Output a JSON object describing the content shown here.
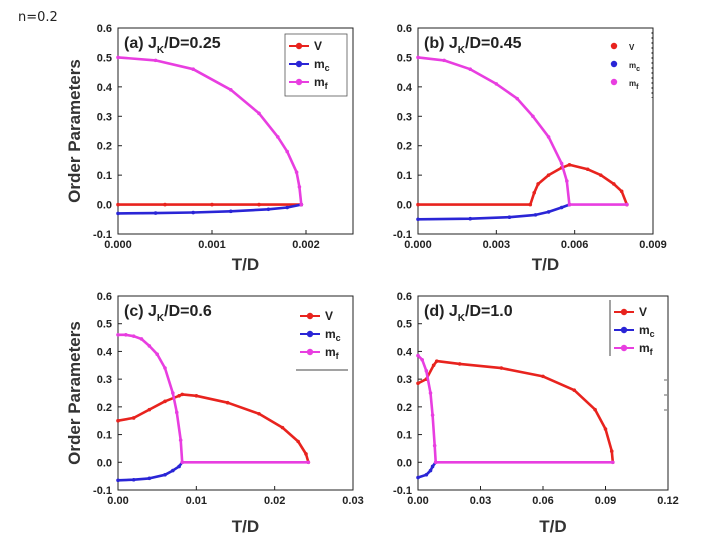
{
  "page_label": "n=0.2",
  "colors": {
    "V": "#e8231e",
    "mc": "#2a25d6",
    "mf": "#e83ee0",
    "axis": "#222222"
  },
  "chart_data": [
    {
      "id": "a",
      "type": "line",
      "title_pre": "(a) J",
      "title_sub": "K",
      "title_post": "/D=0.25",
      "xlabel": "T/D",
      "ylabel": "Order Parameters",
      "xlim": [
        0,
        0.0025
      ],
      "ylim": [
        -0.1,
        0.6
      ],
      "xticks": [
        "0.000",
        "0.001",
        "0.002"
      ],
      "xtick_values": [
        0,
        0.001,
        0.002
      ],
      "yticks": [
        "-0.1",
        "0.0",
        "0.1",
        "0.2",
        "0.3",
        "0.4",
        "0.5",
        "0.6"
      ],
      "ytick_values": [
        -0.1,
        0,
        0.1,
        0.2,
        0.3,
        0.4,
        0.5,
        0.6
      ],
      "legend": [
        "V",
        "m",
        "m"
      ],
      "legend_sub": [
        "",
        "c",
        "f"
      ],
      "series": [
        {
          "name": "V",
          "x": [
            0,
            0.0005,
            0.001,
            0.0015,
            0.00195
          ],
          "y": [
            0,
            0,
            0,
            0,
            0
          ]
        },
        {
          "name": "mc",
          "x": [
            0,
            0.0004,
            0.0008,
            0.0012,
            0.0016,
            0.0018,
            0.00195
          ],
          "y": [
            -0.03,
            -0.029,
            -0.027,
            -0.023,
            -0.016,
            -0.01,
            0
          ]
        },
        {
          "name": "mf",
          "x": [
            0,
            0.0004,
            0.0008,
            0.0012,
            0.0015,
            0.0017,
            0.0018,
            0.0019,
            0.00193,
            0.00195
          ],
          "y": [
            0.5,
            0.49,
            0.46,
            0.39,
            0.31,
            0.23,
            0.18,
            0.11,
            0.06,
            0
          ]
        }
      ]
    },
    {
      "id": "b",
      "type": "line",
      "title_pre": "(b) J",
      "title_sub": "K",
      "title_post": "/D=0.45",
      "xlabel": "T/D",
      "ylabel": "Order Parameters",
      "xlim": [
        0,
        0.009
      ],
      "ylim": [
        -0.1,
        0.6
      ],
      "xticks": [
        "0.000",
        "0.003",
        "0.006",
        "0.009"
      ],
      "xtick_values": [
        0,
        0.003,
        0.006,
        0.009
      ],
      "yticks": [
        "-0.1",
        "0.0",
        "0.1",
        "0.2",
        "0.3",
        "0.4",
        "0.5",
        "0.6"
      ],
      "ytick_values": [
        -0.1,
        0,
        0.1,
        0.2,
        0.3,
        0.4,
        0.5,
        0.6
      ],
      "legend": [
        "V",
        "m",
        "m"
      ],
      "legend_sub": [
        "",
        "c",
        "f"
      ],
      "series": [
        {
          "name": "V",
          "x": [
            0,
            0.0043,
            0.00445,
            0.0046,
            0.005,
            0.0055,
            0.0058,
            0.0065,
            0.007,
            0.0075,
            0.0078,
            0.008
          ],
          "y": [
            0,
            0,
            0.04,
            0.07,
            0.1,
            0.125,
            0.135,
            0.12,
            0.1,
            0.07,
            0.045,
            0
          ]
        },
        {
          "name": "mc",
          "x": [
            0,
            0.002,
            0.0035,
            0.0045,
            0.005,
            0.0055,
            0.0058
          ],
          "y": [
            -0.05,
            -0.048,
            -0.043,
            -0.035,
            -0.025,
            -0.01,
            0
          ]
        },
        {
          "name": "mf",
          "x": [
            0,
            0.001,
            0.002,
            0.003,
            0.0038,
            0.0044,
            0.005,
            0.0055,
            0.0057,
            0.0058,
            0.008
          ],
          "y": [
            0.5,
            0.49,
            0.46,
            0.41,
            0.36,
            0.3,
            0.23,
            0.14,
            0.08,
            0,
            0
          ]
        }
      ]
    },
    {
      "id": "c",
      "type": "line",
      "title_pre": "(c) J",
      "title_sub": "K",
      "title_post": "/D=0.6",
      "xlabel": "T/D",
      "ylabel": "Order Parameters",
      "xlim": [
        0,
        0.03
      ],
      "ylim": [
        -0.1,
        0.6
      ],
      "xticks": [
        "0.00",
        "0.01",
        "0.02",
        "0.03"
      ],
      "xtick_values": [
        0,
        0.01,
        0.02,
        0.03
      ],
      "yticks": [
        "-0.1",
        "0.0",
        "0.1",
        "0.2",
        "0.3",
        "0.4",
        "0.5",
        "0.6"
      ],
      "ytick_values": [
        -0.1,
        0,
        0.1,
        0.2,
        0.3,
        0.4,
        0.5,
        0.6
      ],
      "legend": [
        "V",
        "m",
        "m"
      ],
      "legend_sub": [
        "",
        "c",
        "f"
      ],
      "series": [
        {
          "name": "V",
          "x": [
            0,
            0.002,
            0.004,
            0.006,
            0.0078,
            0.0082,
            0.01,
            0.014,
            0.018,
            0.021,
            0.023,
            0.024,
            0.0243
          ],
          "y": [
            0.15,
            0.16,
            0.19,
            0.22,
            0.24,
            0.245,
            0.24,
            0.215,
            0.175,
            0.125,
            0.075,
            0.03,
            0
          ]
        },
        {
          "name": "mc",
          "x": [
            0,
            0.002,
            0.004,
            0.006,
            0.007,
            0.0078,
            0.0082
          ],
          "y": [
            -0.065,
            -0.063,
            -0.058,
            -0.045,
            -0.03,
            -0.015,
            0
          ]
        },
        {
          "name": "mf",
          "x": [
            0,
            0.001,
            0.002,
            0.003,
            0.004,
            0.005,
            0.006,
            0.007,
            0.0075,
            0.008,
            0.0082,
            0.0243
          ],
          "y": [
            0.46,
            0.46,
            0.455,
            0.445,
            0.42,
            0.39,
            0.34,
            0.25,
            0.18,
            0.08,
            0,
            0
          ]
        }
      ]
    },
    {
      "id": "d",
      "type": "line",
      "title_pre": "(d) J",
      "title_sub": "K",
      "title_post": "/D=1.0",
      "xlabel": "T/D",
      "ylabel": "Order Parameters",
      "xlim": [
        0,
        0.12
      ],
      "ylim": [
        -0.1,
        0.6
      ],
      "xticks": [
        "0.00",
        "0.03",
        "0.06",
        "0.09",
        "0.12"
      ],
      "xtick_values": [
        0,
        0.03,
        0.06,
        0.09,
        0.12
      ],
      "yticks": [
        "-0.1",
        "0.0",
        "0.1",
        "0.2",
        "0.3",
        "0.4",
        "0.5",
        "0.6"
      ],
      "ytick_values": [
        -0.1,
        0,
        0.1,
        0.2,
        0.3,
        0.4,
        0.5,
        0.6
      ],
      "legend": [
        "V",
        "m",
        "m"
      ],
      "legend_sub": [
        "",
        "c",
        "f"
      ],
      "series": [
        {
          "name": "V",
          "x": [
            0,
            0.004,
            0.0075,
            0.009,
            0.02,
            0.04,
            0.06,
            0.075,
            0.085,
            0.09,
            0.093,
            0.0935
          ],
          "y": [
            0.285,
            0.3,
            0.35,
            0.365,
            0.355,
            0.34,
            0.31,
            0.26,
            0.19,
            0.12,
            0.04,
            0
          ]
        },
        {
          "name": "mc",
          "x": [
            0,
            0.004,
            0.006,
            0.007,
            0.0085
          ],
          "y": [
            -0.055,
            -0.045,
            -0.03,
            -0.015,
            0
          ]
        },
        {
          "name": "mf",
          "x": [
            0,
            0.002,
            0.004,
            0.006,
            0.007,
            0.008,
            0.0085,
            0.0935
          ],
          "y": [
            0.385,
            0.37,
            0.33,
            0.25,
            0.17,
            0.06,
            0,
            0
          ]
        }
      ]
    }
  ]
}
